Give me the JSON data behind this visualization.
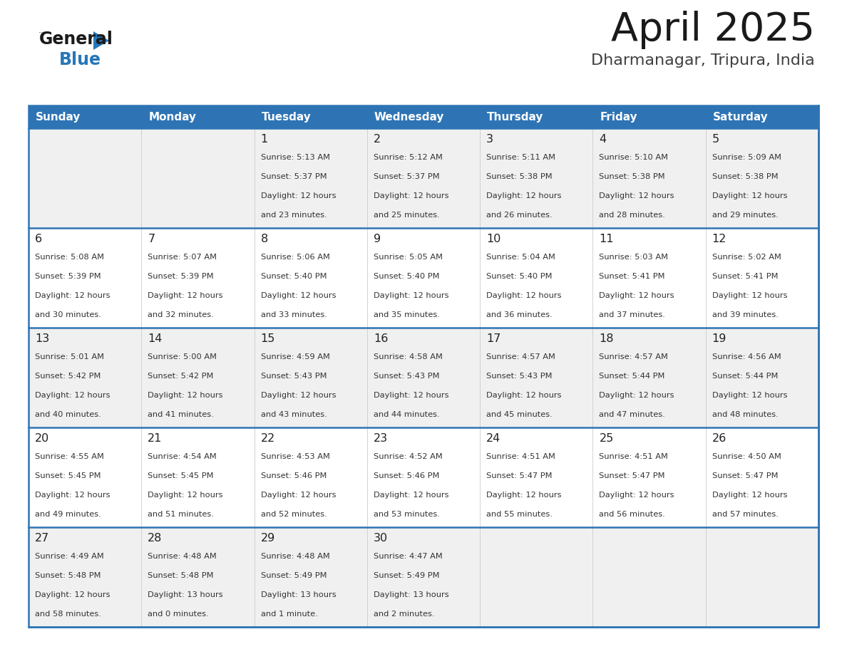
{
  "title": "April 2025",
  "subtitle": "Dharmanagar, Tripura, India",
  "header_bg": "#2E74B5",
  "header_text_color": "#FFFFFF",
  "row_bg_odd": "#F0F0F0",
  "row_bg_even": "#FFFFFF",
  "separator_color": "#2E74B5",
  "cell_border_color": "#AAAAAA",
  "day_names": [
    "Sunday",
    "Monday",
    "Tuesday",
    "Wednesday",
    "Thursday",
    "Friday",
    "Saturday"
  ],
  "calendar": [
    [
      {
        "day": "",
        "sunrise": "",
        "sunset": "",
        "daylight": ""
      },
      {
        "day": "",
        "sunrise": "",
        "sunset": "",
        "daylight": ""
      },
      {
        "day": "1",
        "sunrise": "Sunrise: 5:13 AM",
        "sunset": "Sunset: 5:37 PM",
        "daylight": "Daylight: 12 hours\nand 23 minutes."
      },
      {
        "day": "2",
        "sunrise": "Sunrise: 5:12 AM",
        "sunset": "Sunset: 5:37 PM",
        "daylight": "Daylight: 12 hours\nand 25 minutes."
      },
      {
        "day": "3",
        "sunrise": "Sunrise: 5:11 AM",
        "sunset": "Sunset: 5:38 PM",
        "daylight": "Daylight: 12 hours\nand 26 minutes."
      },
      {
        "day": "4",
        "sunrise": "Sunrise: 5:10 AM",
        "sunset": "Sunset: 5:38 PM",
        "daylight": "Daylight: 12 hours\nand 28 minutes."
      },
      {
        "day": "5",
        "sunrise": "Sunrise: 5:09 AM",
        "sunset": "Sunset: 5:38 PM",
        "daylight": "Daylight: 12 hours\nand 29 minutes."
      }
    ],
    [
      {
        "day": "6",
        "sunrise": "Sunrise: 5:08 AM",
        "sunset": "Sunset: 5:39 PM",
        "daylight": "Daylight: 12 hours\nand 30 minutes."
      },
      {
        "day": "7",
        "sunrise": "Sunrise: 5:07 AM",
        "sunset": "Sunset: 5:39 PM",
        "daylight": "Daylight: 12 hours\nand 32 minutes."
      },
      {
        "day": "8",
        "sunrise": "Sunrise: 5:06 AM",
        "sunset": "Sunset: 5:40 PM",
        "daylight": "Daylight: 12 hours\nand 33 minutes."
      },
      {
        "day": "9",
        "sunrise": "Sunrise: 5:05 AM",
        "sunset": "Sunset: 5:40 PM",
        "daylight": "Daylight: 12 hours\nand 35 minutes."
      },
      {
        "day": "10",
        "sunrise": "Sunrise: 5:04 AM",
        "sunset": "Sunset: 5:40 PM",
        "daylight": "Daylight: 12 hours\nand 36 minutes."
      },
      {
        "day": "11",
        "sunrise": "Sunrise: 5:03 AM",
        "sunset": "Sunset: 5:41 PM",
        "daylight": "Daylight: 12 hours\nand 37 minutes."
      },
      {
        "day": "12",
        "sunrise": "Sunrise: 5:02 AM",
        "sunset": "Sunset: 5:41 PM",
        "daylight": "Daylight: 12 hours\nand 39 minutes."
      }
    ],
    [
      {
        "day": "13",
        "sunrise": "Sunrise: 5:01 AM",
        "sunset": "Sunset: 5:42 PM",
        "daylight": "Daylight: 12 hours\nand 40 minutes."
      },
      {
        "day": "14",
        "sunrise": "Sunrise: 5:00 AM",
        "sunset": "Sunset: 5:42 PM",
        "daylight": "Daylight: 12 hours\nand 41 minutes."
      },
      {
        "day": "15",
        "sunrise": "Sunrise: 4:59 AM",
        "sunset": "Sunset: 5:43 PM",
        "daylight": "Daylight: 12 hours\nand 43 minutes."
      },
      {
        "day": "16",
        "sunrise": "Sunrise: 4:58 AM",
        "sunset": "Sunset: 5:43 PM",
        "daylight": "Daylight: 12 hours\nand 44 minutes."
      },
      {
        "day": "17",
        "sunrise": "Sunrise: 4:57 AM",
        "sunset": "Sunset: 5:43 PM",
        "daylight": "Daylight: 12 hours\nand 45 minutes."
      },
      {
        "day": "18",
        "sunrise": "Sunrise: 4:57 AM",
        "sunset": "Sunset: 5:44 PM",
        "daylight": "Daylight: 12 hours\nand 47 minutes."
      },
      {
        "day": "19",
        "sunrise": "Sunrise: 4:56 AM",
        "sunset": "Sunset: 5:44 PM",
        "daylight": "Daylight: 12 hours\nand 48 minutes."
      }
    ],
    [
      {
        "day": "20",
        "sunrise": "Sunrise: 4:55 AM",
        "sunset": "Sunset: 5:45 PM",
        "daylight": "Daylight: 12 hours\nand 49 minutes."
      },
      {
        "day": "21",
        "sunrise": "Sunrise: 4:54 AM",
        "sunset": "Sunset: 5:45 PM",
        "daylight": "Daylight: 12 hours\nand 51 minutes."
      },
      {
        "day": "22",
        "sunrise": "Sunrise: 4:53 AM",
        "sunset": "Sunset: 5:46 PM",
        "daylight": "Daylight: 12 hours\nand 52 minutes."
      },
      {
        "day": "23",
        "sunrise": "Sunrise: 4:52 AM",
        "sunset": "Sunset: 5:46 PM",
        "daylight": "Daylight: 12 hours\nand 53 minutes."
      },
      {
        "day": "24",
        "sunrise": "Sunrise: 4:51 AM",
        "sunset": "Sunset: 5:47 PM",
        "daylight": "Daylight: 12 hours\nand 55 minutes."
      },
      {
        "day": "25",
        "sunrise": "Sunrise: 4:51 AM",
        "sunset": "Sunset: 5:47 PM",
        "daylight": "Daylight: 12 hours\nand 56 minutes."
      },
      {
        "day": "26",
        "sunrise": "Sunrise: 4:50 AM",
        "sunset": "Sunset: 5:47 PM",
        "daylight": "Daylight: 12 hours\nand 57 minutes."
      }
    ],
    [
      {
        "day": "27",
        "sunrise": "Sunrise: 4:49 AM",
        "sunset": "Sunset: 5:48 PM",
        "daylight": "Daylight: 12 hours\nand 58 minutes."
      },
      {
        "day": "28",
        "sunrise": "Sunrise: 4:48 AM",
        "sunset": "Sunset: 5:48 PM",
        "daylight": "Daylight: 13 hours\nand 0 minutes."
      },
      {
        "day": "29",
        "sunrise": "Sunrise: 4:48 AM",
        "sunset": "Sunset: 5:49 PM",
        "daylight": "Daylight: 13 hours\nand 1 minute."
      },
      {
        "day": "30",
        "sunrise": "Sunrise: 4:47 AM",
        "sunset": "Sunset: 5:49 PM",
        "daylight": "Daylight: 13 hours\nand 2 minutes."
      },
      {
        "day": "",
        "sunrise": "",
        "sunset": "",
        "daylight": ""
      },
      {
        "day": "",
        "sunrise": "",
        "sunset": "",
        "daylight": ""
      },
      {
        "day": "",
        "sunrise": "",
        "sunset": "",
        "daylight": ""
      }
    ]
  ],
  "logo_color_general": "#1a1a1a",
  "logo_color_blue": "#2777B8",
  "title_color": "#1a1a1a",
  "subtitle_color": "#404040",
  "fig_width": 11.88,
  "fig_height": 9.18,
  "dpi": 100
}
